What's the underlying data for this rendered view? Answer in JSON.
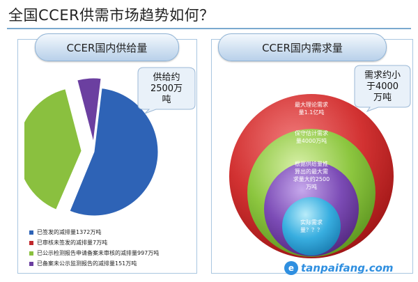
{
  "title": "全国CCER供需市场趋势如何？",
  "supply": {
    "header": "CCER国内供给量",
    "callout": [
      "供给约",
      "2500万",
      "吨"
    ],
    "legend": [
      {
        "label": "已签发的减排量1372万吨",
        "color": "#2e63b6"
      },
      {
        "label": "已审核未签发的减排量7万吨",
        "color": "#c0282c"
      },
      {
        "label": "已公示检测报告申请备案未审核的减排量997万吨",
        "color": "#8ac03f"
      },
      {
        "label": "已备案未公示监测报告的减排量151万吨",
        "color": "#6b3fa0"
      }
    ]
  },
  "demand": {
    "header": "CCER国内需求量",
    "callout": [
      "需求约小",
      "于4000",
      "万吨"
    ],
    "rings": [
      {
        "label": [
          "最大理论需求",
          "量1.1亿吨"
        ],
        "color": "#cc2a2a"
      },
      {
        "label": [
          "保守估计需求",
          "量4000万吨"
        ],
        "color": "#86c23f"
      },
      {
        "label": [
          "根据供给量推",
          "算出的最大需",
          "求量大约2500",
          "万吨"
        ],
        "color": "#7a4bb0"
      },
      {
        "label": [
          "实际需求",
          "量？？？"
        ],
        "color": "#33a6d8"
      }
    ]
  },
  "chart_data": {
    "type": "pie",
    "categories": [
      "已签发的减排量1372万吨",
      "已审核未签发的减排量7万吨",
      "已公示检测报告申请备案未审核的减排量997万吨",
      "已备案未公示监测报告的减排量151万吨"
    ],
    "values": [
      1372,
      7,
      997,
      151
    ],
    "unit": "万吨",
    "colors": [
      "#2e63b6",
      "#c0282c",
      "#8ac03f",
      "#6b3fa0"
    ],
    "legend_position": "bottom-left"
  },
  "watermark": {
    "icon": "leaf-icon",
    "text": "tanpaifang.com"
  }
}
